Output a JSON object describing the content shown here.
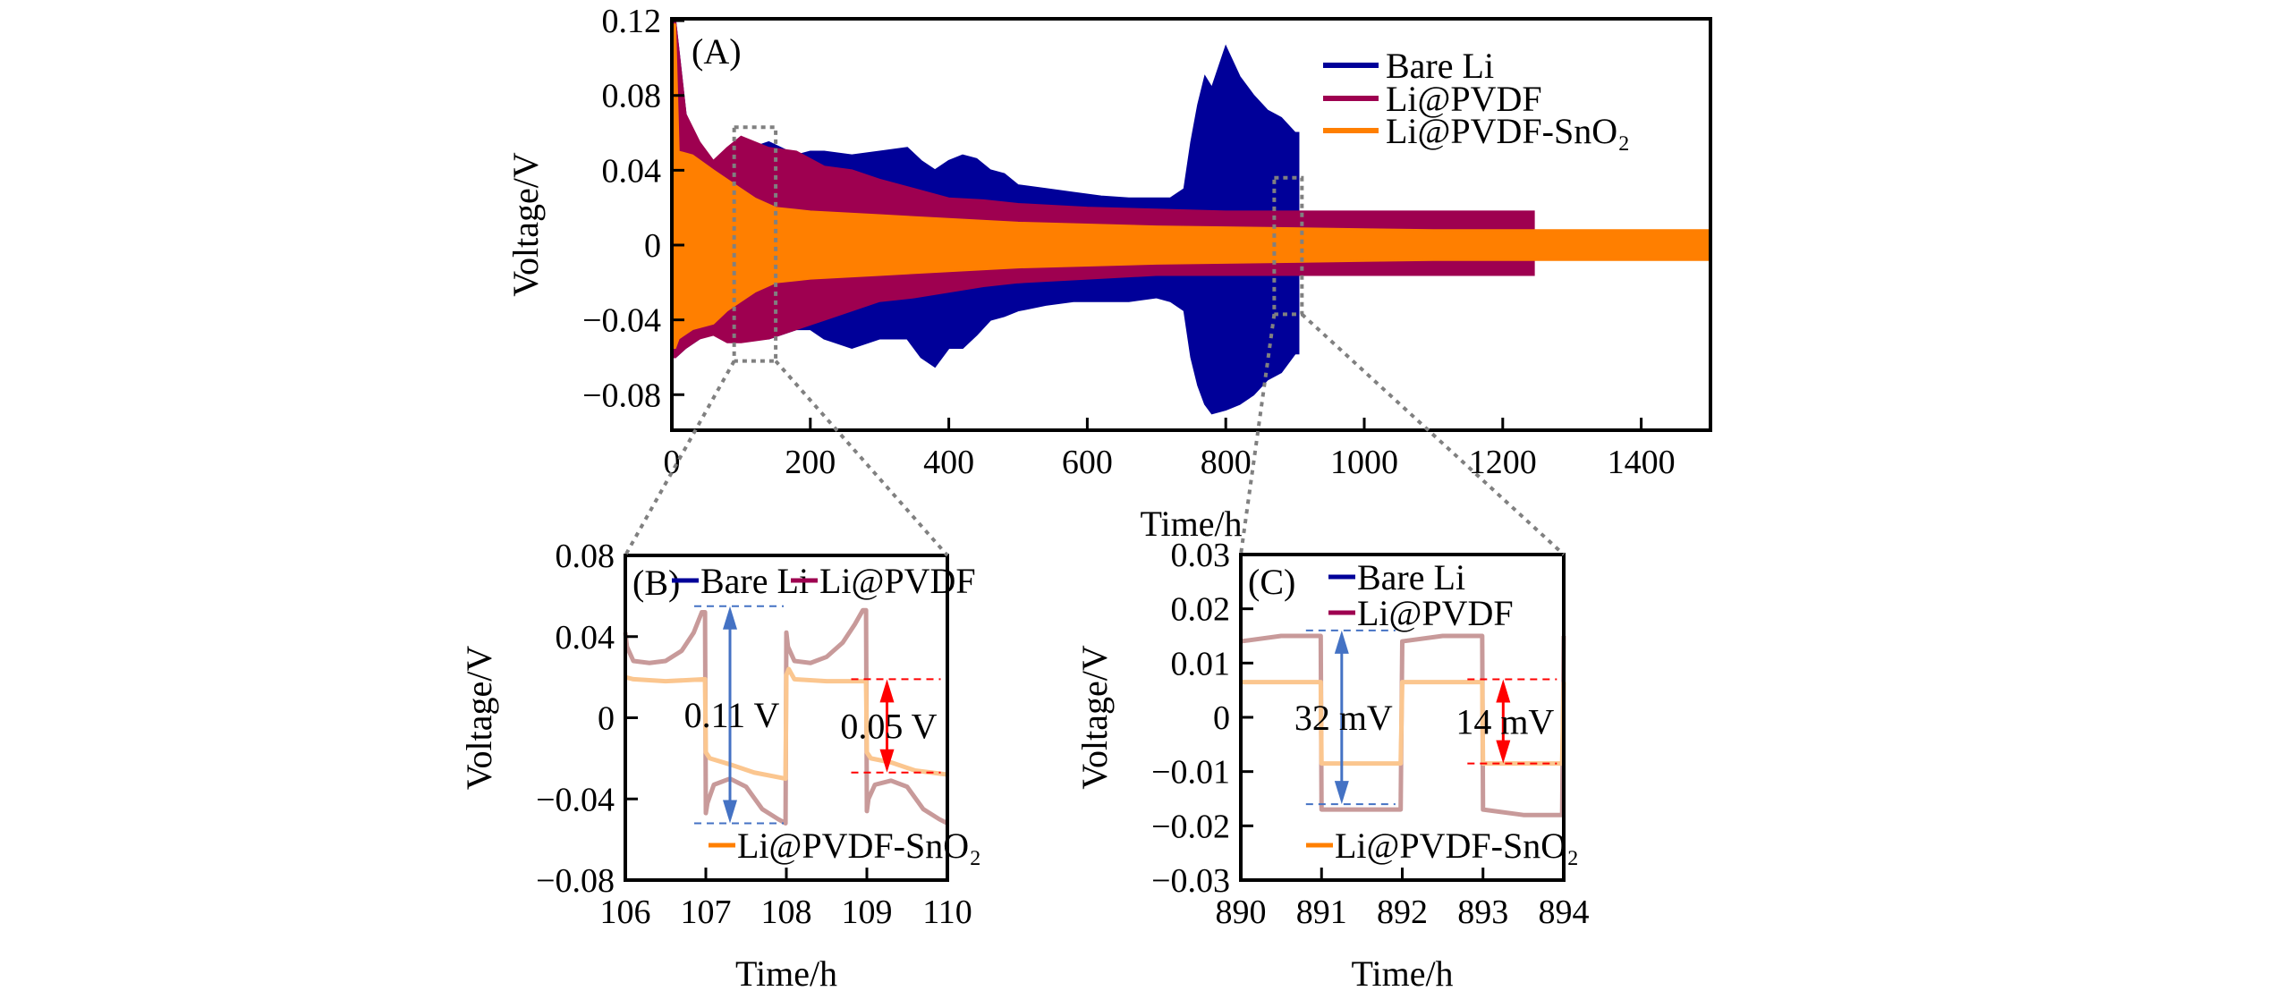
{
  "colors": {
    "bare_li": "#000099",
    "li_pvdf": "#9e0050",
    "li_pvdf_sno2": "#ff7f00",
    "li_pvdf_light": "#c89a9a",
    "li_pvdf_sno2_light": "#fbc68f",
    "blue_annot": "#4472c4",
    "red_annot": "#ff0000",
    "zoom_box": "#808080"
  },
  "chart_data": [
    {
      "id": "A",
      "type": "area",
      "panel_label": "(A)",
      "title": "",
      "xlabel": "Time/h",
      "ylabel": "Voltage/V",
      "xlim": [
        0,
        1500
      ],
      "ylim": [
        -0.099,
        0.121
      ],
      "xticks": [
        0,
        200,
        400,
        600,
        800,
        1000,
        1200,
        1400
      ],
      "xtick_labels": [
        "0",
        "200",
        "400",
        "600",
        "800",
        "1000",
        "1200",
        "1400"
      ],
      "yticks": [
        0.12,
        0.08,
        0.04,
        0,
        -0.04,
        -0.08
      ],
      "ytick_labels": [
        "0.12",
        "0.08",
        "0.04",
        "0",
        "−0.04",
        "−0.08"
      ],
      "legend": {
        "placement": "top-right",
        "entries": [
          "Bare Li",
          "Li@PVDF",
          "Li@PVDF-SnO₂"
        ]
      },
      "series": [
        {
          "name": "Bare Li",
          "color_key": "bare_li",
          "description": "envelope of voltage oscillation (upper/lower bound in V)",
          "x": [
            0,
            5,
            20,
            40,
            60,
            100,
            140,
            180,
            200,
            220,
            260,
            300,
            340,
            360,
            380,
            400,
            420,
            440,
            460,
            480,
            500,
            540,
            580,
            620,
            660,
            700,
            720,
            740,
            750,
            760,
            770,
            780,
            800,
            820,
            840,
            860,
            880,
            900,
            905
          ],
          "upper": [
            0.12,
            0.12,
            0.07,
            0.05,
            0.045,
            0.05,
            0.055,
            0.048,
            0.05,
            0.05,
            0.048,
            0.05,
            0.052,
            0.045,
            0.04,
            0.045,
            0.048,
            0.046,
            0.04,
            0.038,
            0.032,
            0.03,
            0.028,
            0.026,
            0.025,
            0.025,
            0.025,
            0.03,
            0.055,
            0.075,
            0.09,
            0.084,
            0.106,
            0.09,
            0.08,
            0.072,
            0.068,
            0.06,
            0.06
          ],
          "lower": [
            -0.06,
            -0.06,
            -0.055,
            -0.05,
            -0.045,
            -0.045,
            -0.05,
            -0.045,
            -0.045,
            -0.05,
            -0.055,
            -0.05,
            -0.05,
            -0.06,
            -0.065,
            -0.055,
            -0.055,
            -0.048,
            -0.04,
            -0.038,
            -0.035,
            -0.032,
            -0.03,
            -0.03,
            -0.03,
            -0.028,
            -0.03,
            -0.035,
            -0.06,
            -0.075,
            -0.085,
            -0.09,
            -0.088,
            -0.085,
            -0.08,
            -0.072,
            -0.068,
            -0.058,
            -0.058
          ]
        },
        {
          "name": "Li@PVDF",
          "color_key": "li_pvdf",
          "x": [
            0,
            5,
            20,
            40,
            60,
            80,
            100,
            140,
            180,
            220,
            260,
            300,
            350,
            400,
            450,
            500,
            600,
            700,
            800,
            900,
            1000,
            1100,
            1200,
            1245
          ],
          "upper": [
            0.12,
            0.12,
            0.07,
            0.055,
            0.045,
            0.052,
            0.058,
            0.052,
            0.05,
            0.042,
            0.04,
            0.035,
            0.03,
            0.025,
            0.024,
            0.022,
            0.02,
            0.019,
            0.018,
            0.018,
            0.018,
            0.018,
            0.018,
            0.018
          ],
          "lower": [
            -0.06,
            -0.06,
            -0.055,
            -0.05,
            -0.048,
            -0.052,
            -0.052,
            -0.05,
            -0.045,
            -0.04,
            -0.035,
            -0.03,
            -0.028,
            -0.025,
            -0.022,
            -0.02,
            -0.018,
            -0.016,
            -0.016,
            -0.016,
            -0.016,
            -0.016,
            -0.016,
            -0.016
          ]
        },
        {
          "name": "Li@PVDF-SnO₂",
          "color_key": "li_pvdf_sno2",
          "x": [
            0,
            5,
            10,
            30,
            60,
            80,
            100,
            120,
            150,
            200,
            300,
            400,
            500,
            700,
            900,
            1100,
            1300,
            1500
          ],
          "upper": [
            0.118,
            0.118,
            0.05,
            0.048,
            0.04,
            0.035,
            0.03,
            0.025,
            0.02,
            0.018,
            0.016,
            0.014,
            0.012,
            0.01,
            0.009,
            0.008,
            0.008,
            0.008
          ],
          "lower": [
            -0.055,
            -0.055,
            -0.05,
            -0.045,
            -0.042,
            -0.035,
            -0.03,
            -0.025,
            -0.02,
            -0.018,
            -0.016,
            -0.014,
            -0.012,
            -0.01,
            -0.009,
            -0.008,
            -0.008,
            -0.008
          ]
        }
      ],
      "zoom_boxes": [
        {
          "target": "B",
          "x_range": [
            90,
            150
          ],
          "y_range": [
            -0.062,
            0.063
          ]
        },
        {
          "target": "C",
          "x_range": [
            870,
            910
          ],
          "y_range": [
            -0.037,
            0.036
          ]
        }
      ]
    },
    {
      "id": "B",
      "type": "line",
      "panel_label": "(B)",
      "xlabel": "Time/h",
      "ylabel": "Voltage/V",
      "xlim": [
        106,
        110
      ],
      "ylim": [
        -0.08,
        0.08
      ],
      "xticks": [
        106,
        107,
        108,
        109,
        110
      ],
      "xtick_labels": [
        "106",
        "107",
        "108",
        "109",
        "110"
      ],
      "yticks": [
        0.08,
        0.04,
        0,
        -0.04,
        -0.08
      ],
      "ytick_labels": [
        "0.08",
        "0.04",
        "0",
        "−0.04",
        "−0.08"
      ],
      "legend": {
        "entries": [
          "Bare Li",
          "Li@PVDF",
          "Li@PVDF-SnO₂"
        ]
      },
      "series": [
        {
          "name": "Li@PVDF",
          "color_key": "li_pvdf_light",
          "x": [
            106.0,
            106.02,
            106.1,
            106.3,
            106.5,
            106.7,
            106.85,
            106.95,
            106.99,
            107.0,
            107.02,
            107.1,
            107.3,
            107.5,
            107.7,
            107.9,
            107.99,
            108.0,
            108.02,
            108.1,
            108.3,
            108.5,
            108.7,
            108.85,
            108.95,
            108.99,
            109.0,
            109.02,
            109.1,
            109.3,
            109.5,
            109.7,
            109.9,
            110.0
          ],
          "y": [
            0.042,
            0.035,
            0.028,
            0.027,
            0.028,
            0.033,
            0.042,
            0.052,
            0.052,
            -0.047,
            -0.042,
            -0.033,
            -0.03,
            -0.034,
            -0.045,
            -0.05,
            -0.052,
            0.042,
            0.035,
            0.028,
            0.027,
            0.03,
            0.037,
            0.046,
            0.053,
            0.053,
            -0.046,
            -0.04,
            -0.033,
            -0.031,
            -0.034,
            -0.045,
            -0.05,
            -0.052
          ]
        },
        {
          "name": "Li@PVDF-SnO₂",
          "color_key": "li_pvdf_sno2_light",
          "x": [
            106.0,
            106.1,
            106.5,
            106.99,
            107.0,
            107.05,
            107.3,
            107.6,
            107.99,
            108.0,
            108.03,
            108.1,
            108.5,
            108.99,
            109.0,
            109.05,
            109.3,
            109.6,
            110.0
          ],
          "y": [
            0.02,
            0.019,
            0.018,
            0.019,
            -0.017,
            -0.02,
            -0.023,
            -0.027,
            -0.03,
            0.021,
            0.024,
            0.019,
            0.018,
            0.018,
            -0.017,
            -0.02,
            -0.022,
            -0.026,
            -0.028
          ]
        }
      ],
      "annotations": [
        {
          "text": "0.11 V",
          "color_key": "blue_annot",
          "y_top": 0.055,
          "y_bottom": -0.052,
          "x": 107.3
        },
        {
          "text": "0.05 V",
          "color_key": "red_annot",
          "y_top": 0.019,
          "y_bottom": -0.027,
          "x": 109.25
        }
      ]
    },
    {
      "id": "C",
      "type": "line",
      "panel_label": "(C)",
      "xlabel": "Time/h",
      "ylabel": "Voltage/V",
      "xlim": [
        890,
        894
      ],
      "ylim": [
        -0.03,
        0.03
      ],
      "xticks": [
        890,
        891,
        892,
        893,
        894
      ],
      "xtick_labels": [
        "890",
        "891",
        "892",
        "893",
        "894"
      ],
      "yticks": [
        0.03,
        0.02,
        0.01,
        0,
        -0.01,
        -0.02,
        -0.03
      ],
      "ytick_labels": [
        "0.03",
        "0.02",
        "0.01",
        "0",
        "−0.01",
        "−0.02",
        "−0.03"
      ],
      "legend": {
        "entries": [
          "Bare Li",
          "Li@PVDF",
          "Li@PVDF-SnO₂"
        ]
      },
      "series": [
        {
          "name": "Li@PVDF",
          "color_key": "li_pvdf_light",
          "x": [
            890.0,
            890.5,
            890.99,
            891.0,
            891.5,
            891.98,
            892.0,
            892.5,
            892.99,
            893.0,
            893.5,
            893.98,
            894.0
          ],
          "y": [
            0.014,
            0.015,
            0.015,
            -0.017,
            -0.017,
            -0.017,
            0.014,
            0.015,
            0.015,
            -0.017,
            -0.018,
            -0.018,
            0.015
          ]
        },
        {
          "name": "Li@PVDF-SnO₂",
          "color_key": "li_pvdf_sno2_light",
          "x": [
            890.0,
            890.5,
            890.99,
            891.0,
            891.5,
            891.98,
            892.0,
            892.5,
            892.99,
            893.0,
            893.5,
            893.98,
            894.0
          ],
          "y": [
            0.0065,
            0.0065,
            0.0065,
            -0.0085,
            -0.0085,
            -0.0085,
            0.0065,
            0.0065,
            0.0065,
            -0.0085,
            -0.0085,
            -0.0085,
            0.0065
          ]
        }
      ],
      "annotations": [
        {
          "text": "32 mV",
          "color_key": "blue_annot",
          "y_top": 0.016,
          "y_bottom": -0.016,
          "x": 891.25
        },
        {
          "text": "14 mV",
          "color_key": "red_annot",
          "y_top": 0.007,
          "y_bottom": -0.0085,
          "x": 893.25
        }
      ]
    }
  ]
}
